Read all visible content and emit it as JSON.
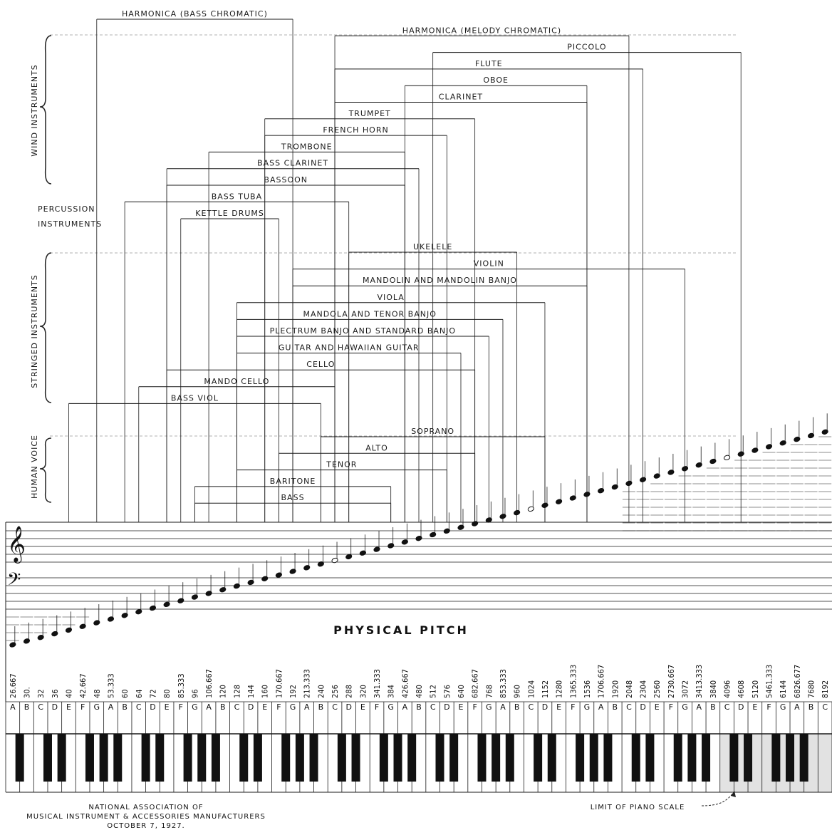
{
  "footer": {
    "org_line1": "NATIONAL ASSOCIATION OF",
    "org_line2": "MUSICAL INSTRUMENT & ACCESSORIES MANUFACTURERS",
    "date": "OCTOBER 7, 1927.",
    "limit_label": "LIMIT OF PIANO SCALE"
  },
  "title": "PHYSICAL   PITCH",
  "groups": [
    {
      "name": "WIND INSTRUMENTS"
    },
    {
      "name": "STRINGED INSTRUMENTS"
    },
    {
      "name": "HUMAN VOICE"
    }
  ],
  "percussion_label": [
    "PERCUSSION",
    "INSTRUMENTS"
  ],
  "keys": [
    {
      "note": "A",
      "freq": "26.667"
    },
    {
      "note": "B",
      "freq": "30."
    },
    {
      "note": "C",
      "freq": "32"
    },
    {
      "note": "D",
      "freq": "36"
    },
    {
      "note": "E",
      "freq": "40"
    },
    {
      "note": "F",
      "freq": "42.667"
    },
    {
      "note": "G",
      "freq": "48"
    },
    {
      "note": "A",
      "freq": "53.333"
    },
    {
      "note": "B",
      "freq": "60"
    },
    {
      "note": "C",
      "freq": "64"
    },
    {
      "note": "D",
      "freq": "72"
    },
    {
      "note": "E",
      "freq": "80"
    },
    {
      "note": "F",
      "freq": "85.333"
    },
    {
      "note": "G",
      "freq": "96"
    },
    {
      "note": "A",
      "freq": "106.667"
    },
    {
      "note": "B",
      "freq": "120"
    },
    {
      "note": "C",
      "freq": "128"
    },
    {
      "note": "D",
      "freq": "144"
    },
    {
      "note": "E",
      "freq": "160"
    },
    {
      "note": "F",
      "freq": "170.667"
    },
    {
      "note": "G",
      "freq": "192"
    },
    {
      "note": "A",
      "freq": "213.333"
    },
    {
      "note": "B",
      "freq": "240"
    },
    {
      "note": "C",
      "freq": "256"
    },
    {
      "note": "D",
      "freq": "288"
    },
    {
      "note": "E",
      "freq": "320"
    },
    {
      "note": "F",
      "freq": "341.333"
    },
    {
      "note": "G",
      "freq": "384"
    },
    {
      "note": "A",
      "freq": "426.667"
    },
    {
      "note": "B",
      "freq": "480"
    },
    {
      "note": "C",
      "freq": "512"
    },
    {
      "note": "D",
      "freq": "576"
    },
    {
      "note": "E",
      "freq": "640"
    },
    {
      "note": "F",
      "freq": "682.667"
    },
    {
      "note": "G",
      "freq": "768"
    },
    {
      "note": "A",
      "freq": "853.333"
    },
    {
      "note": "B",
      "freq": "960"
    },
    {
      "note": "C",
      "freq": "1024"
    },
    {
      "note": "D",
      "freq": "1152"
    },
    {
      "note": "E",
      "freq": "1280"
    },
    {
      "note": "F",
      "freq": "1365.333"
    },
    {
      "note": "G",
      "freq": "1536"
    },
    {
      "note": "A",
      "freq": "1706.667"
    },
    {
      "note": "B",
      "freq": "1920"
    },
    {
      "note": "C",
      "freq": "2048"
    },
    {
      "note": "D",
      "freq": "2304"
    },
    {
      "note": "E",
      "freq": "2560"
    },
    {
      "note": "F",
      "freq": "2730.667"
    },
    {
      "note": "G",
      "freq": "3072"
    },
    {
      "note": "A",
      "freq": "3413.333"
    },
    {
      "note": "B",
      "freq": "3840"
    },
    {
      "note": "C",
      "freq": "4096"
    },
    {
      "note": "D",
      "freq": "4608"
    },
    {
      "note": "E",
      "freq": "5120"
    },
    {
      "note": "F",
      "freq": "5461.333"
    },
    {
      "note": "G",
      "freq": "6144"
    },
    {
      "note": "A",
      "freq": "6826.677"
    },
    {
      "note": "B",
      "freq": "7680"
    },
    {
      "note": "C",
      "freq": "8192"
    }
  ],
  "instruments": [
    {
      "name": "HARMONICA (BASS CHROMATIC)",
      "group": "wind",
      "low": 6,
      "high": 20
    },
    {
      "name": "HARMONICA (MELODY CHROMATIC)",
      "group": "wind",
      "low": 23,
      "high": 44
    },
    {
      "name": "PICCOLO",
      "group": "wind",
      "low": 30,
      "high": 52
    },
    {
      "name": "FLUTE",
      "group": "wind",
      "low": 23,
      "high": 45
    },
    {
      "name": "OBOE",
      "group": "wind",
      "low": 28,
      "high": 41
    },
    {
      "name": "CLARINET",
      "group": "wind",
      "low": 23,
      "high": 41
    },
    {
      "name": "TRUMPET",
      "group": "wind",
      "low": 18,
      "high": 33
    },
    {
      "name": "FRENCH HORN",
      "group": "wind",
      "low": 18,
      "high": 31
    },
    {
      "name": "TROMBONE",
      "group": "wind",
      "low": 14,
      "high": 28
    },
    {
      "name": "BASS CLARINET",
      "group": "wind",
      "low": 11,
      "high": 29
    },
    {
      "name": "BASSOON",
      "group": "wind",
      "low": 11,
      "high": 28
    },
    {
      "name": "BASS TUBA",
      "group": "wind",
      "low": 8,
      "high": 24
    },
    {
      "name": "KETTLE DRUMS",
      "group": "percussion",
      "low": 12,
      "high": 19
    },
    {
      "name": "UKELELE",
      "group": "string",
      "low": 24,
      "high": 36
    },
    {
      "name": "VIOLIN",
      "group": "string",
      "low": 20,
      "high": 48
    },
    {
      "name": "MANDOLIN AND MANDOLIN BANJO",
      "group": "string",
      "low": 20,
      "high": 41
    },
    {
      "name": "VIOLA",
      "group": "string",
      "low": 16,
      "high": 38
    },
    {
      "name": "MANDOLA AND TENOR BANJO",
      "group": "string",
      "low": 16,
      "high": 35
    },
    {
      "name": "PLECTRUM BANJO AND STANDARD BANJO",
      "group": "string",
      "low": 16,
      "high": 34
    },
    {
      "name": "GUITAR AND HAWAIIAN GUITAR",
      "group": "string",
      "low": 16,
      "high": 32
    },
    {
      "name": "CELLO",
      "group": "string",
      "low": 11,
      "high": 33
    },
    {
      "name": "MANDO CELLO",
      "group": "string",
      "low": 9,
      "high": 23
    },
    {
      "name": "BASS VIOL",
      "group": "string",
      "low": 4,
      "high": 22
    },
    {
      "name": "SOPRANO",
      "group": "voice",
      "low": 22,
      "high": 38
    },
    {
      "name": "ALTO",
      "group": "voice",
      "low": 19,
      "high": 33
    },
    {
      "name": "TENOR",
      "group": "voice",
      "low": 16,
      "high": 31
    },
    {
      "name": "BARITONE",
      "group": "voice",
      "low": 13,
      "high": 27
    },
    {
      "name": "BASS",
      "group": "voice",
      "low": 13,
      "high": 27
    }
  ],
  "piano_limit_key": 51
}
